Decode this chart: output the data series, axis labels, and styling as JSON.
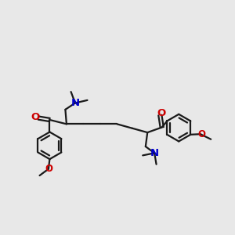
{
  "bg_color": "#e8e8e8",
  "bond_color": "#1a1a1a",
  "O_color": "#cc0000",
  "N_color": "#0000cc",
  "line_width": 1.6,
  "font_size": 8.5,
  "figsize": [
    3.0,
    3.0
  ],
  "dpi": 100,
  "ring_r": 0.58,
  "xlim": [
    0,
    10
  ],
  "ylim": [
    0,
    10
  ]
}
